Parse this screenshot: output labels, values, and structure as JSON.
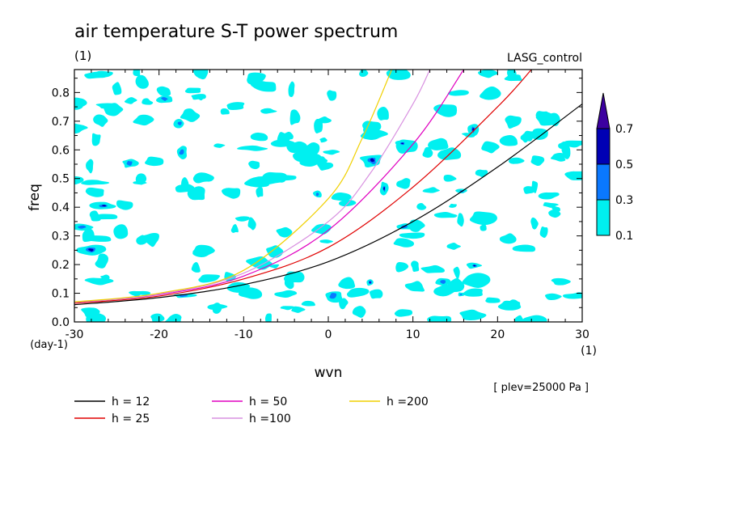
{
  "chart_data": {
    "type": "contour",
    "title": "air temperature S-T power spectrum",
    "subtitle_unit": "(1)",
    "experiment": "LASG_control",
    "xlabel": "wvn",
    "x_unit": "(1)",
    "ylabel": "freq",
    "y_unit": "(day-1)",
    "xlim": [
      -30,
      30
    ],
    "ylim": [
      0.0,
      0.88
    ],
    "x_ticks": [
      -30,
      -20,
      -10,
      0,
      10,
      20,
      30
    ],
    "x_tick_labels": [
      "-30",
      "-20",
      "-10",
      "0",
      "10",
      "20",
      "30"
    ],
    "y_ticks": [
      0.0,
      0.1,
      0.2,
      0.3,
      0.4,
      0.5,
      0.6,
      0.7,
      0.8
    ],
    "y_tick_labels": [
      "0.0",
      "0.1",
      "0.2",
      "0.3",
      "0.4",
      "0.5",
      "0.6",
      "0.7",
      "0.8"
    ],
    "level_note": "[ plev=25000 Pa ]",
    "colorbar": {
      "levels": [
        0.1,
        0.3,
        0.5,
        0.7
      ],
      "labels": [
        "0.1",
        "0.3",
        "0.5",
        "0.7"
      ],
      "colors": [
        "#00f0f0",
        "#0a78ff",
        "#0000b4",
        "#3c00a0"
      ]
    },
    "series": [
      {
        "name": "h = 12",
        "color": "#000000",
        "x": [
          -30,
          -20,
          -10,
          0,
          10,
          20,
          30
        ],
        "y": [
          0.06,
          0.085,
          0.13,
          0.21,
          0.35,
          0.54,
          0.76
        ]
      },
      {
        "name": "h = 25",
        "color": "#e00000",
        "x": [
          -30,
          -20,
          -10,
          0,
          10,
          20,
          24
        ],
        "y": [
          0.065,
          0.09,
          0.15,
          0.26,
          0.47,
          0.75,
          0.88
        ]
      },
      {
        "name": "h = 50",
        "color": "#e000c0",
        "x": [
          -30,
          -20,
          -10,
          0,
          10,
          16
        ],
        "y": [
          0.068,
          0.095,
          0.16,
          0.32,
          0.62,
          0.88
        ]
      },
      {
        "name": "h =100",
        "color": "#d890e0",
        "x": [
          -30,
          -20,
          -10,
          0,
          5,
          10,
          12
        ],
        "y": [
          0.068,
          0.097,
          0.17,
          0.35,
          0.52,
          0.76,
          0.88
        ]
      },
      {
        "name": "h =200",
        "color": "#f0d000",
        "x": [
          -30,
          -20,
          -10,
          0,
          4,
          7.5
        ],
        "y": [
          0.07,
          0.1,
          0.18,
          0.43,
          0.64,
          0.88
        ]
      }
    ]
  }
}
